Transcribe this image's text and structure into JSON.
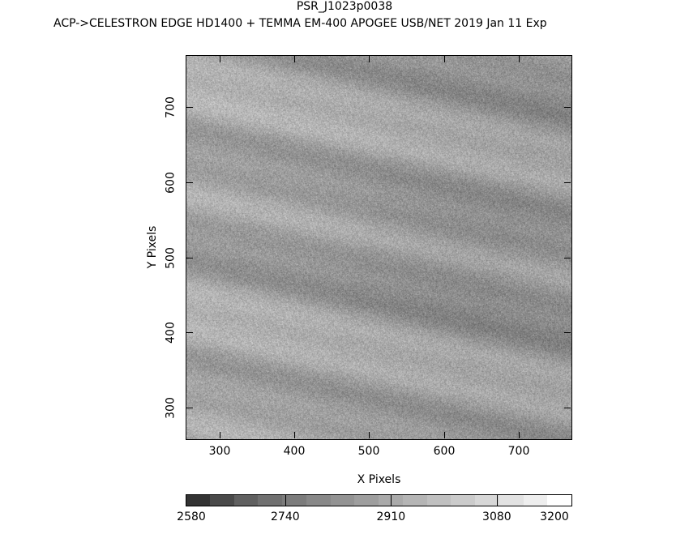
{
  "header": {
    "title": "PSR_J1023p0038",
    "subtitle": "ACP->CELESTRON EDGE HD1400 + TEMMA EM-400 APOGEE USB/NET   2019 Jan 11    Exp"
  },
  "chart_data": {
    "type": "heatmap",
    "title": "PSR_J1023p0038",
    "xlabel": "X Pixels",
    "ylabel": "Y Pixels",
    "xlim": [
      255,
      770
    ],
    "ylim": [
      258,
      769
    ],
    "xticks": [
      300,
      400,
      500,
      600,
      700
    ],
    "yticks": [
      300,
      400,
      500,
      600,
      700
    ],
    "colormap": "grayscale",
    "colorbar": {
      "range": [
        2580,
        3200
      ],
      "ticks": [
        2740,
        2910,
        3080
      ],
      "labels": [
        "2580",
        "2740",
        "2910",
        "3080",
        "3200"
      ],
      "steps": [
        "#333333",
        "#4a4a4a",
        "#606060",
        "#707070",
        "#7c7c7c",
        "#888888",
        "#939393",
        "#9e9e9e",
        "#aaaaaa",
        "#b5b5b5",
        "#c0c0c0",
        "#cbcbcb",
        "#d7d7d7",
        "#e2e2e2",
        "#eeeeee",
        "#ffffff"
      ]
    },
    "grid": false
  }
}
